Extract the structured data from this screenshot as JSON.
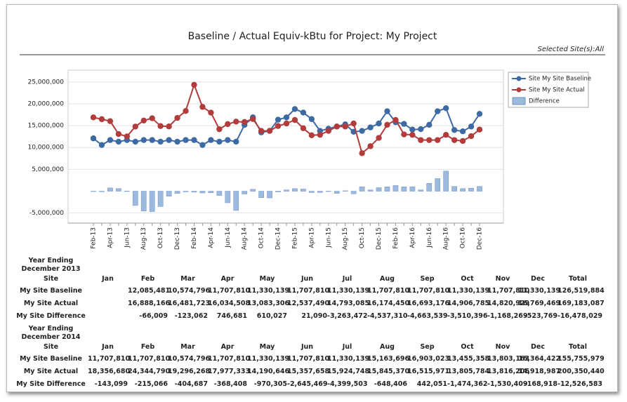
{
  "chart_data": {
    "type": "combo",
    "title": "Baseline / Actual Equiv-kBtu for Project: My Project",
    "categories": [
      "Feb-13",
      null,
      "Apr-13",
      null,
      "Jun-13",
      null,
      "Aug-13",
      null,
      "Oct-13",
      null,
      "Dec-13",
      null,
      "Feb-14",
      null,
      "Apr-14",
      null,
      "Jun-14",
      null,
      "Aug-14",
      null,
      "Oct-14",
      null,
      "Dec-14",
      null,
      "Feb-15",
      null,
      "Apr-15",
      null,
      "Jun-15",
      null,
      "Aug-15",
      null,
      "Oct-15",
      null,
      "Dec-15",
      null,
      "Feb-16",
      null,
      "Apr-16",
      null,
      "Jun-16",
      null,
      "Aug-16",
      null,
      "Oct-16",
      null,
      "Dec-16"
    ],
    "series": [
      {
        "name": "Site My Site Baseline",
        "type": "line",
        "color": "#3e6aa3",
        "values": [
          12085481,
          10574796,
          11707810,
          11330139,
          11707810,
          11330139,
          11707810,
          11707810,
          11330139,
          11707810,
          11330139,
          11707810,
          11707810,
          10574796,
          11707810,
          11330139,
          11707810,
          11330139,
          15163696,
          16903023,
          13455358,
          13803163,
          16364422,
          16900000,
          18800000,
          18000000,
          16500000,
          13800000,
          14300000,
          14800000,
          15300000,
          13600000,
          13800000,
          14600000,
          15500000,
          18300000,
          15800000,
          15400000,
          14100000,
          14200000,
          15200000,
          18300000,
          19000000,
          14000000,
          13700000,
          14800000,
          17700000
        ]
      },
      {
        "name": "Site My Site Actual",
        "type": "line",
        "color": "#b23b3b",
        "values": [
          16888166,
          16481723,
          16034508,
          13083306,
          12537490,
          14793085,
          16174450,
          16693176,
          14906785,
          14820929,
          16769469,
          18356680,
          24344790,
          19296268,
          17977333,
          14190646,
          15357658,
          15924748,
          15845370,
          16515971,
          13805784,
          13816206,
          14918987,
          15500000,
          16300000,
          14400000,
          12800000,
          12900000,
          13800000,
          14800000,
          14800000,
          15500000,
          8700000,
          10300000,
          12200000,
          15200000,
          16300000,
          13000000,
          12900000,
          11700000,
          11700000,
          11700000,
          12900000,
          11700000,
          11500000,
          12600000,
          14100000
        ]
      },
      {
        "name": "Difference",
        "type": "bar",
        "color": "#9cb9de",
        "values": [
          -66009,
          -123062,
          746681,
          610027,
          21090,
          -3263472,
          -4537310,
          -4663539,
          -3510396,
          -1168269,
          -523769,
          -143099,
          -215066,
          -404687,
          -368408,
          -970305,
          -2645469,
          -4399503,
          -648406,
          442051,
          -1474362,
          -1530409,
          -168918,
          300000,
          600000,
          500000,
          -300000,
          -300000,
          0,
          -500000,
          100000,
          -600000,
          1000000,
          300000,
          800000,
          1000000,
          1300000,
          1000000,
          1000000,
          300000,
          1800000,
          2900000,
          4600000,
          1100000,
          600000,
          700000,
          1100000
        ]
      }
    ],
    "ylim": [
      -7300000,
      27700000
    ],
    "yticks": [
      {
        "value": -5000000,
        "label": "-5,000,000"
      },
      {
        "value": 5000000,
        "label": "5,000,000"
      },
      {
        "value": 10000000,
        "label": "10,000,000"
      },
      {
        "value": 15000000,
        "label": "15,000,000"
      },
      {
        "value": 20000000,
        "label": "20,000,000"
      },
      {
        "value": 25000000,
        "label": "25,000,000"
      }
    ],
    "grid": true,
    "legend": "right"
  },
  "selection": "Selected Site(s):All",
  "tables": [
    {
      "caption": "Year Ending December 2013",
      "columns": [
        "Site",
        "Jan",
        "Feb",
        "Mar",
        "Apr",
        "May",
        "Jun",
        "Jul",
        "Aug",
        "Sep",
        "Oct",
        "Nov",
        "Dec",
        "Total"
      ],
      "rows": [
        [
          "My Site Baseline",
          null,
          "12,085,481",
          "10,574,796",
          "11,707,810",
          "11,330,139",
          "11,707,810",
          "11,330,139",
          "11,707,810",
          "11,707,810",
          "11,330,139",
          "11,707,810",
          "11,330,139",
          "126,519,884"
        ],
        [
          "My Site Actual",
          null,
          "16,888,166",
          "16,481,723",
          "16,034,508",
          "13,083,306",
          "12,537,490",
          "14,793,085",
          "16,174,450",
          "16,693,176",
          "14,906,785",
          "14,820,929",
          "16,769,469",
          "169,183,087"
        ],
        [
          "My Site Difference",
          null,
          "-66,009",
          "-123,062",
          "746,681",
          "610,027",
          "21,090",
          "-3,263,472",
          "-4,537,310",
          "-4,663,539",
          "-3,510,396",
          "-1,168,269",
          "-523,769",
          "-16,478,029"
        ]
      ]
    },
    {
      "caption": "Year Ending December 2014",
      "columns": [
        "Site",
        "Jan",
        "Feb",
        "Mar",
        "Apr",
        "May",
        "Jun",
        "Jul",
        "Aug",
        "Sep",
        "Oct",
        "Nov",
        "Dec",
        "Total"
      ],
      "rows": [
        [
          "My Site Baseline",
          "11,707,810",
          "11,707,810",
          "10,574,796",
          "11,707,810",
          "11,330,139",
          "11,707,810",
          "11,330,139",
          "15,163,696",
          "16,903,023",
          "13,455,358",
          "13,803,163",
          "16,364,422",
          "155,755,979"
        ],
        [
          "My Site Actual",
          "18,356,680",
          "24,344,790",
          "19,296,268",
          "17,977,333",
          "14,190,646",
          "15,357,658",
          "15,924,748",
          "15,845,370",
          "16,515,971",
          "13,805,784",
          "13,816,206",
          "14,918,987",
          "200,350,440"
        ],
        [
          "My Site Difference",
          "-143,099",
          "-215,066",
          "-404,687",
          "-368,408",
          "-970,305",
          "-2,645,469",
          "-4,399,503",
          "-648,406",
          "442,051",
          "-1,474,362",
          "-1,530,409",
          "-168,918",
          "-12,526,583"
        ]
      ]
    }
  ]
}
